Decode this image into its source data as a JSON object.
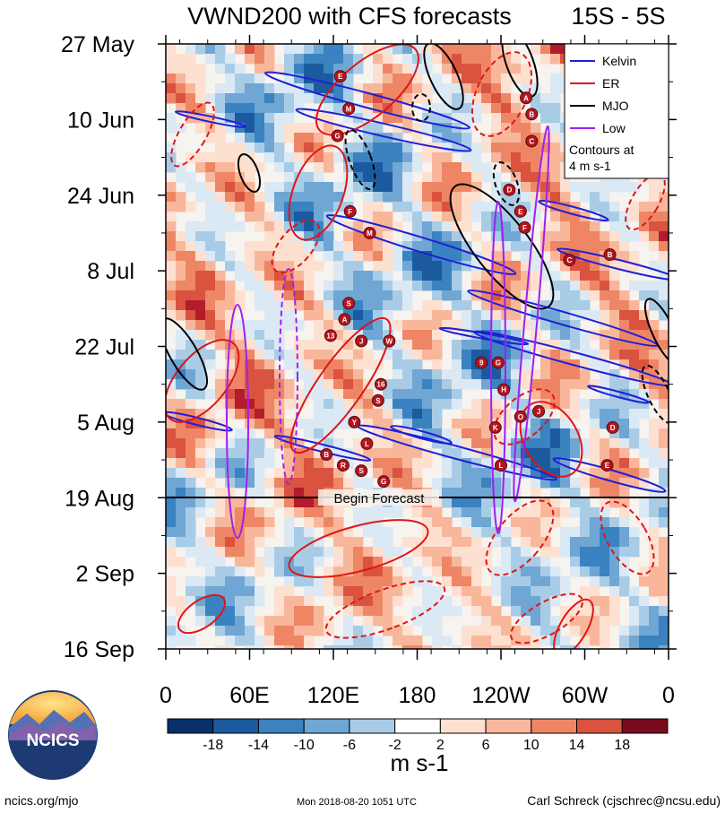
{
  "chart_data": {
    "type": "heatmap",
    "title": "VWND200 with CFS forecasts",
    "region_label": "15S - 5S",
    "x_tick_labels": [
      "0",
      "60E",
      "120E",
      "180",
      "120W",
      "60W",
      "0"
    ],
    "y_tick_labels": [
      "27 May",
      "10 Jun",
      "24 Jun",
      "8 Jul",
      "22 Jul",
      "5 Aug",
      "19 Aug",
      "2 Sep",
      "16 Sep"
    ],
    "xlim": [
      0,
      360
    ],
    "ylim": [
      "27 May",
      "16 Sep"
    ],
    "forecast_marker": {
      "date": "19 Aug",
      "label": "Begin Forecast"
    },
    "legend": {
      "placement": "top-right",
      "entries": [
        {
          "name": "Kelvin",
          "color": "#1f1fd6"
        },
        {
          "name": "ER",
          "color": "#e01515"
        },
        {
          "name": "MJO",
          "color": "#000000"
        },
        {
          "name": "Low",
          "color": "#a020f0"
        }
      ],
      "note_line1": "Contours at",
      "note_line2": "4 m s-1"
    },
    "colorbar": {
      "tick_labels": [
        "-18",
        "-14",
        "-10",
        "-6",
        "-2",
        "2",
        "6",
        "10",
        "14",
        "18"
      ],
      "colors": [
        "#08306b",
        "#1c5aa0",
        "#3a82c0",
        "#6fa6d4",
        "#a9cce6",
        "#dbe9f5",
        "#ffffff",
        "#fde0d0",
        "#f8b79b",
        "#ee8666",
        "#d9533f",
        "#b31c2a",
        "#7a0a1e"
      ],
      "units": "m s-1"
    },
    "storm_markers": [
      {
        "label": "E",
        "lon": 125,
        "day": 6
      },
      {
        "label": "A",
        "lon": 258,
        "day": 10
      },
      {
        "label": "M",
        "lon": 131,
        "day": 12
      },
      {
        "label": "B",
        "lon": 262,
        "day": 13
      },
      {
        "label": "G",
        "lon": 123,
        "day": 17
      },
      {
        "label": "C",
        "lon": 262,
        "day": 18
      },
      {
        "label": "D",
        "lon": 246,
        "day": 27
      },
      {
        "label": "E",
        "lon": 254,
        "day": 31
      },
      {
        "label": "F",
        "lon": 132,
        "day": 31
      },
      {
        "label": "F",
        "lon": 257,
        "day": 34
      },
      {
        "label": "M",
        "lon": 146,
        "day": 35
      },
      {
        "label": "B",
        "lon": 318,
        "day": 39
      },
      {
        "label": "C",
        "lon": 289,
        "day": 40
      },
      {
        "label": "S",
        "lon": 131,
        "day": 48
      },
      {
        "label": "A",
        "lon": 128,
        "day": 51
      },
      {
        "label": "13",
        "lon": 118,
        "day": 54
      },
      {
        "label": "J",
        "lon": 140,
        "day": 55
      },
      {
        "label": "W",
        "lon": 160,
        "day": 55
      },
      {
        "label": "9",
        "lon": 226,
        "day": 59
      },
      {
        "label": "G",
        "lon": 238,
        "day": 59
      },
      {
        "label": "16",
        "lon": 154,
        "day": 63
      },
      {
        "label": "H",
        "lon": 242,
        "day": 64
      },
      {
        "label": "S",
        "lon": 152,
        "day": 66
      },
      {
        "label": "Y",
        "lon": 135,
        "day": 70
      },
      {
        "label": "K",
        "lon": 236,
        "day": 71
      },
      {
        "label": "O",
        "lon": 254,
        "day": 69
      },
      {
        "label": "J",
        "lon": 267,
        "day": 68
      },
      {
        "label": "D",
        "lon": 320,
        "day": 71
      },
      {
        "label": "L",
        "lon": 144,
        "day": 74
      },
      {
        "label": "B",
        "lon": 115,
        "day": 76
      },
      {
        "label": "R",
        "lon": 127,
        "day": 78
      },
      {
        "label": "S",
        "lon": 140,
        "day": 79
      },
      {
        "label": "G",
        "lon": 156,
        "day": 81
      },
      {
        "label": "L",
        "lon": 240,
        "day": 78
      },
      {
        "label": "E",
        "lon": 316,
        "day": 78
      }
    ]
  },
  "footer": {
    "logo_text": "NCICS",
    "url": "ncics.org/mjo",
    "timestamp": "Mon 2018-08-20 1051 UTC",
    "author": "Carl Schreck (cjschrec@ncsu.edu)"
  }
}
